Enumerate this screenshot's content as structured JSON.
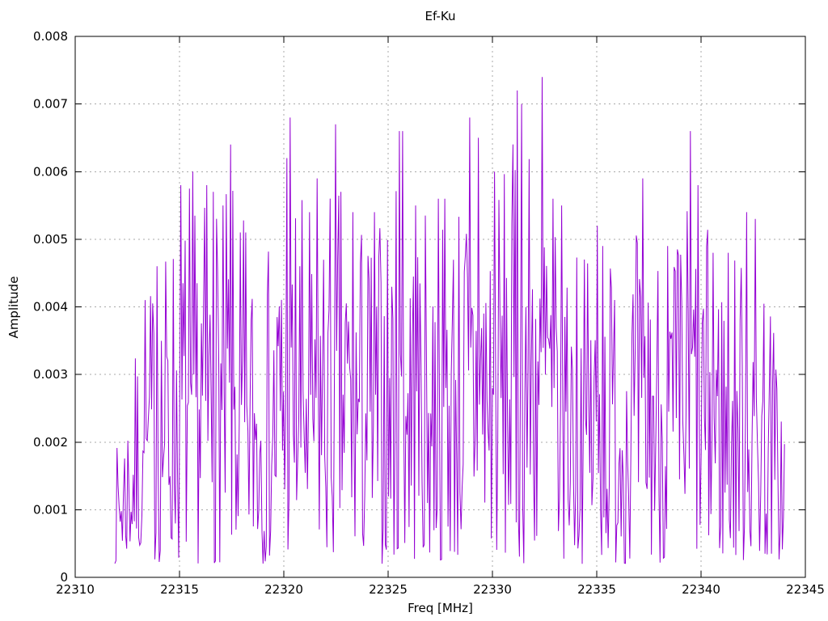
{
  "figure": {
    "background_color": "#ffffff",
    "text_color": "#000000"
  },
  "chart_data": {
    "type": "line",
    "title": "Ef-Ku",
    "xlabel": "Freq [MHz]",
    "ylabel": "Amplitude",
    "xlim": [
      22310,
      22345
    ],
    "ylim": [
      0,
      0.008
    ],
    "x_tick_labels": [
      "22310",
      "22315",
      "22320",
      "22325",
      "22330",
      "22335",
      "22340",
      "22345"
    ],
    "x_tick_values": [
      22310,
      22315,
      22320,
      22325,
      22330,
      22335,
      22340,
      22345
    ],
    "y_tick_labels": [
      "0",
      "0.001",
      "0.002",
      "0.003",
      "0.004",
      "0.005",
      "0.006",
      "0.007",
      "0.008"
    ],
    "y_tick_values": [
      0,
      0.001,
      0.002,
      0.003,
      0.004,
      0.005,
      0.006,
      0.007,
      0.008
    ],
    "grid": true,
    "grid_style": "dotted",
    "legend": "none",
    "line_color": "#9400D3",
    "grid_color": "#a8a8a8",
    "border_color": "#000000",
    "series": {
      "name": "Ef-Ku",
      "x_start": 22311.9,
      "x_end": 22344.0,
      "n_points": 620,
      "noise_seed": 7,
      "noise_exponent": 1.3,
      "noise_floor": 0.0002,
      "upper_envelope": [
        [
          22311.9,
          0.0018
        ],
        [
          22312.4,
          0.0026
        ],
        [
          22313.0,
          0.0035
        ],
        [
          22313.8,
          0.0046
        ],
        [
          22315.0,
          0.0055
        ],
        [
          22316.0,
          0.0056
        ],
        [
          22317.5,
          0.0058
        ],
        [
          22318.5,
          0.005
        ],
        [
          22319.5,
          0.0049
        ],
        [
          22320.3,
          0.006
        ],
        [
          22321.5,
          0.0055
        ],
        [
          22322.5,
          0.006
        ],
        [
          22323.5,
          0.0054
        ],
        [
          22324.5,
          0.0053
        ],
        [
          22325.6,
          0.006
        ],
        [
          22326.5,
          0.0054
        ],
        [
          22327.5,
          0.0055
        ],
        [
          22329.0,
          0.0062
        ],
        [
          22330.0,
          0.0058
        ],
        [
          22331.3,
          0.0066
        ],
        [
          22332.4,
          0.0068
        ],
        [
          22333.5,
          0.0055
        ],
        [
          22334.5,
          0.0048
        ],
        [
          22335.5,
          0.005
        ],
        [
          22336.5,
          0.0048
        ],
        [
          22337.3,
          0.0055
        ],
        [
          22338.5,
          0.0048
        ],
        [
          22339.6,
          0.006
        ],
        [
          22340.5,
          0.005
        ],
        [
          22341.5,
          0.0048
        ],
        [
          22342.3,
          0.0052
        ],
        [
          22343.2,
          0.0045
        ],
        [
          22344.0,
          0.0026
        ]
      ],
      "notable_peaks": [
        [
          22313.35,
          0.0041
        ],
        [
          22313.9,
          0.0046
        ],
        [
          22315.05,
          0.0058
        ],
        [
          22315.5,
          0.00575
        ],
        [
          22315.65,
          0.006
        ],
        [
          22316.3,
          0.0058
        ],
        [
          22316.6,
          0.0057
        ],
        [
          22317.1,
          0.0055
        ],
        [
          22317.45,
          0.0064
        ],
        [
          22317.9,
          0.0051
        ],
        [
          22318.15,
          0.0051
        ],
        [
          22320.15,
          0.0062
        ],
        [
          22320.3,
          0.0068
        ],
        [
          22321.25,
          0.0054
        ],
        [
          22321.6,
          0.0059
        ],
        [
          22322.5,
          0.0067
        ],
        [
          22323.3,
          0.0054
        ],
        [
          22324.35,
          0.0054
        ],
        [
          22325.55,
          0.0066
        ],
        [
          22325.72,
          0.0066
        ],
        [
          22326.3,
          0.0055
        ],
        [
          22327.4,
          0.0056
        ],
        [
          22327.7,
          0.0056
        ],
        [
          22328.9,
          0.0068
        ],
        [
          22329.35,
          0.0065
        ],
        [
          22330.1,
          0.006
        ],
        [
          22331.2,
          0.0072
        ],
        [
          22331.38,
          0.007
        ],
        [
          22332.4,
          0.0074
        ],
        [
          22332.9,
          0.0056
        ],
        [
          22333.3,
          0.0055
        ],
        [
          22334.4,
          0.0047
        ],
        [
          22335.05,
          0.0052
        ],
        [
          22335.3,
          0.0049
        ],
        [
          22337.2,
          0.0059
        ],
        [
          22338.4,
          0.0049
        ],
        [
          22339.5,
          0.0066
        ],
        [
          22339.85,
          0.0058
        ],
        [
          22340.6,
          0.0048
        ],
        [
          22341.3,
          0.0048
        ],
        [
          22342.2,
          0.0054
        ],
        [
          22342.6,
          0.0053
        ]
      ]
    }
  }
}
